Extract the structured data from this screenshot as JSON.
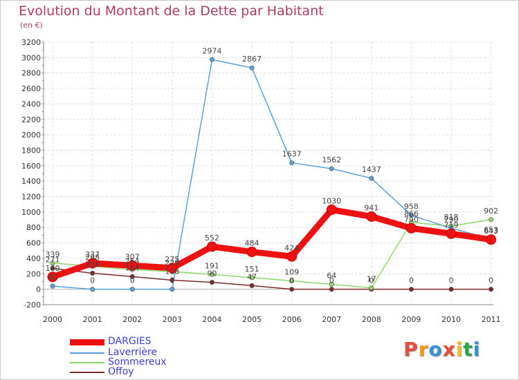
{
  "title": "Evolution du Montant de la Dette par Habitant",
  "unit": "(en €)",
  "logo": {
    "text": "Proxiti",
    "colors": [
      "#e94e3c",
      "#f39c1b",
      "#3a8fd6",
      "#e94e3c",
      "#f3c11b",
      "#2aa84a",
      "#3a8fd6"
    ]
  },
  "chart_data": {
    "type": "line",
    "categories": [
      "2000",
      "2001",
      "2002",
      "2003",
      "2004",
      "2005",
      "2006",
      "2007",
      "2008",
      "2009",
      "2010",
      "2011"
    ],
    "ylim": [
      -200,
      3200
    ],
    "yticks": [
      "-200",
      "0",
      "200",
      "400",
      "600",
      "800",
      "1000",
      "1200",
      "1400",
      "1600",
      "1800",
      "2000",
      "2200",
      "2400",
      "2600",
      "2800",
      "3000",
      "3200"
    ],
    "grid": true,
    "legend_position": "bottom-left",
    "series": [
      {
        "name": "Offoy",
        "color": "#7b2a2a",
        "values": [
          271,
          208,
          164,
          118,
          90,
          47,
          0,
          0,
          0,
          0,
          0,
          0
        ],
        "labels": [
          "271",
          "208",
          "164",
          "118",
          "90",
          "47",
          "0",
          "0",
          "0",
          "0",
          "0",
          "0"
        ]
      },
      {
        "name": "Sommereux",
        "color": "#8fd66a",
        "values": [
          339,
          298,
          254,
          229,
          191,
          151,
          109,
          64,
          17,
          866,
          818,
          902
        ],
        "labels": [
          "339",
          "298",
          "254",
          "229",
          "191",
          "151",
          "109",
          "64",
          "17",
          "866",
          "818",
          "902"
        ]
      },
      {
        "name": "Laverrière",
        "color": "#5b9fd6",
        "values": [
          40,
          0,
          0,
          0,
          2974,
          2867,
          1637,
          1562,
          1437,
          958,
          790,
          653
        ],
        "labels": [
          "40",
          "0",
          "0",
          "0",
          "2974",
          "2867",
          "1637",
          "1562",
          "1437",
          "958",
          "790",
          "653"
        ]
      },
      {
        "name": "DARGIES",
        "color": "#ee1111",
        "values": [
          160,
          337,
          307,
          275,
          552,
          484,
          424,
          1030,
          941,
          790,
          719,
          643
        ],
        "labels": [
          "160",
          "337",
          "307",
          "275",
          "552",
          "484",
          "424",
          "1030",
          "941",
          "790",
          "719",
          "643"
        ]
      }
    ]
  },
  "legend": [
    {
      "label": "DARGIES",
      "color": "#ee1111"
    },
    {
      "label": "Laverrière",
      "color": "#5b9fd6"
    },
    {
      "label": "Sommereux",
      "color": "#8fd66a"
    },
    {
      "label": "Offoy",
      "color": "#7b2a2a"
    }
  ]
}
